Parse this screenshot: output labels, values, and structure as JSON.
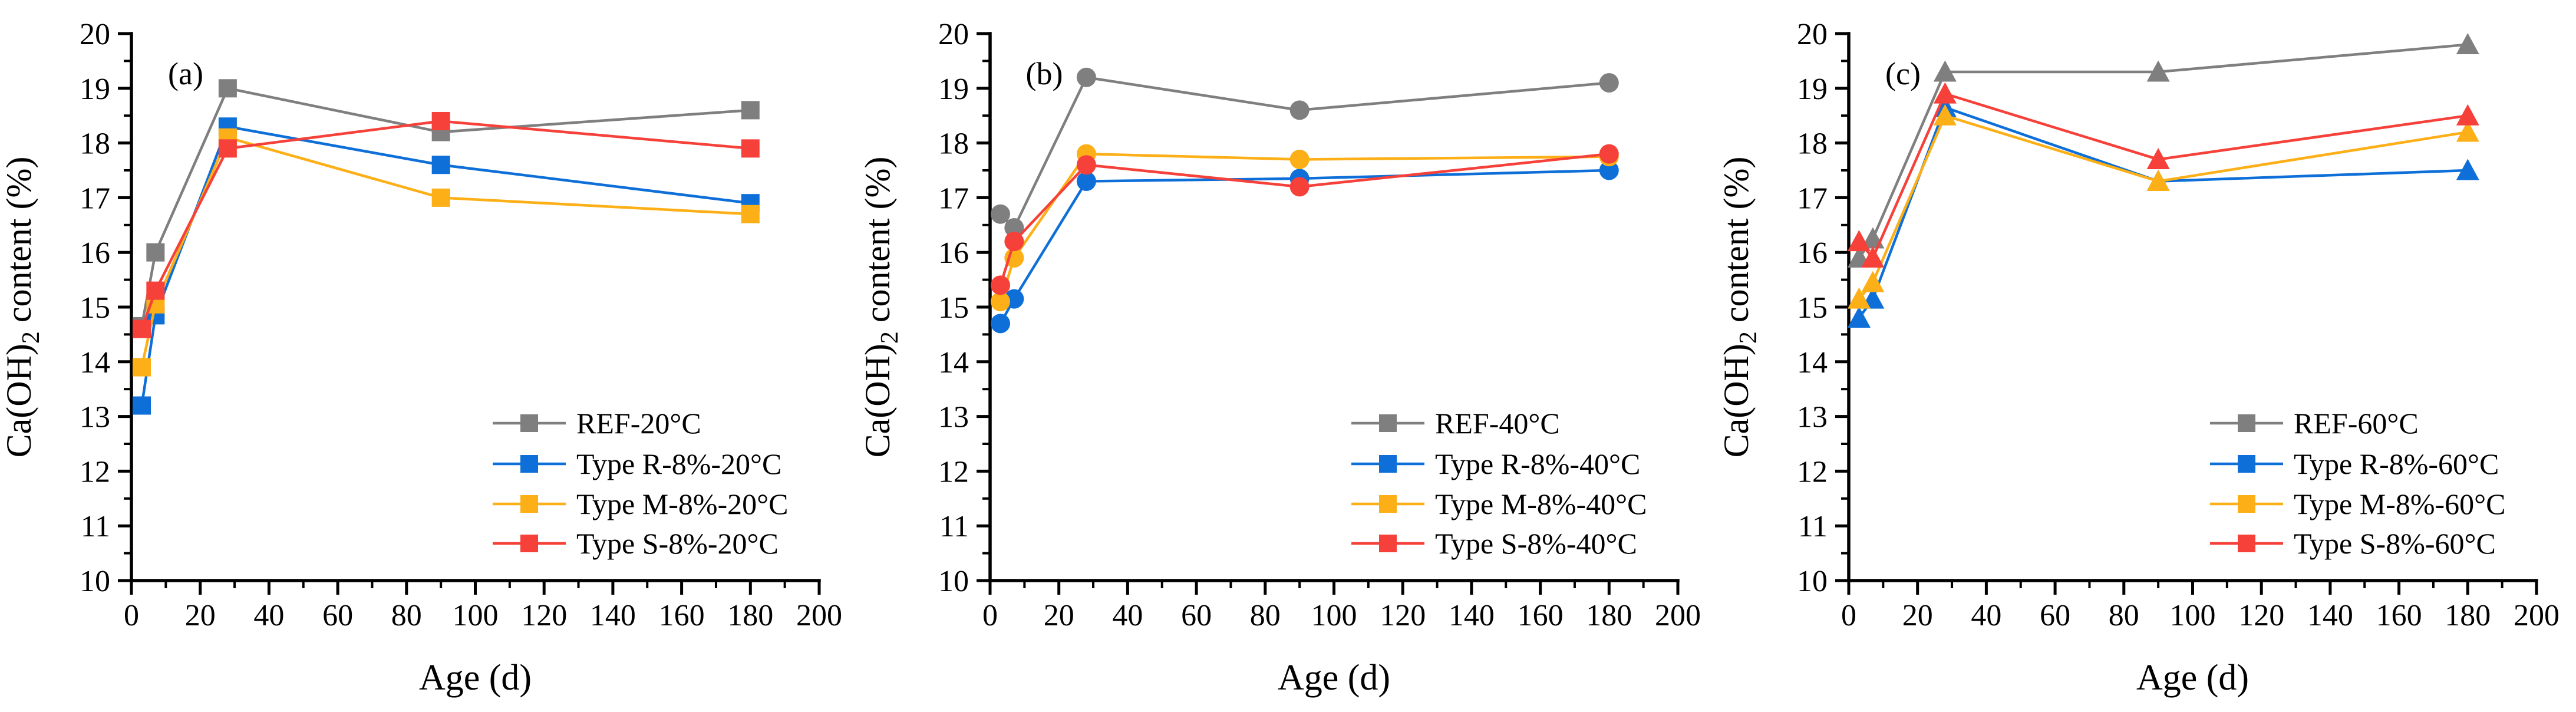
{
  "figure": {
    "background": "#ffffff",
    "x_axis_title": "Age (d)",
    "y_axis_title": "Ca(OH)2 content (%)",
    "y_axis_title_parts": {
      "prefix": "Ca(OH)",
      "subscript": "2",
      "suffix": " content (%)"
    },
    "axis_color": "#000000"
  },
  "chart_data": [
    {
      "type": "line",
      "panel_label": "(a)",
      "marker": "square",
      "x": [
        3,
        7,
        28,
        90,
        180
      ],
      "xlabel": "Age (d)",
      "ylabel": "Ca(OH)2 content (%)",
      "xlim": [
        0,
        200
      ],
      "ylim": [
        10,
        20
      ],
      "xticks": [
        0,
        20,
        40,
        60,
        80,
        100,
        120,
        140,
        160,
        180,
        200
      ],
      "yticks": [
        10,
        11,
        12,
        13,
        14,
        15,
        16,
        17,
        18,
        19,
        20
      ],
      "x_minor_step": 10,
      "y_minor_step": 0.5,
      "grid": false,
      "legend_position": "lower-right",
      "series": [
        {
          "name": "REF-20°C",
          "color": "#7f7f7f",
          "values": [
            14.65,
            16.0,
            19.0,
            18.2,
            18.6
          ]
        },
        {
          "name": "Type R-8%-20°C",
          "color": "#0e6fd8",
          "values": [
            13.2,
            14.85,
            18.3,
            17.6,
            16.9
          ]
        },
        {
          "name": "Type M-8%-20°C",
          "color": "#fcaf17",
          "values": [
            13.9,
            15.05,
            18.1,
            17.0,
            16.7
          ]
        },
        {
          "name": "Type S-8%-20°C",
          "color": "#f6413a",
          "values": [
            14.6,
            15.3,
            17.9,
            18.4,
            17.9
          ]
        }
      ]
    },
    {
      "type": "line",
      "panel_label": "(b)",
      "marker": "circle",
      "x": [
        3,
        7,
        28,
        90,
        180
      ],
      "xlabel": "Age (d)",
      "ylabel": "Ca(OH)2 content (%)",
      "xlim": [
        0,
        200
      ],
      "ylim": [
        10,
        20
      ],
      "xticks": [
        0,
        20,
        40,
        60,
        80,
        100,
        120,
        140,
        160,
        180,
        200
      ],
      "yticks": [
        10,
        11,
        12,
        13,
        14,
        15,
        16,
        17,
        18,
        19,
        20
      ],
      "x_minor_step": 10,
      "y_minor_step": 0.5,
      "grid": false,
      "legend_position": "lower-right",
      "series": [
        {
          "name": "REF-40°C",
          "color": "#7f7f7f",
          "values": [
            16.7,
            16.45,
            19.2,
            18.6,
            19.1
          ]
        },
        {
          "name": "Type R-8%-40°C",
          "color": "#0e6fd8",
          "values": [
            14.7,
            15.15,
            17.3,
            17.35,
            17.5
          ]
        },
        {
          "name": "Type M-8%-40°C",
          "color": "#fcaf17",
          "values": [
            15.1,
            15.9,
            17.8,
            17.7,
            17.75
          ]
        },
        {
          "name": "Type S-8%-40°C",
          "color": "#f6413a",
          "values": [
            15.4,
            16.2,
            17.6,
            17.2,
            17.8
          ]
        }
      ]
    },
    {
      "type": "line",
      "panel_label": "(c)",
      "marker": "triangle",
      "x": [
        3,
        7,
        28,
        90,
        180
      ],
      "xlabel": "Age (d)",
      "ylabel": "Ca(OH)2 content (%)",
      "xlim": [
        0,
        200
      ],
      "ylim": [
        10,
        20
      ],
      "xticks": [
        0,
        20,
        40,
        60,
        80,
        100,
        120,
        140,
        160,
        180,
        200
      ],
      "yticks": [
        10,
        11,
        12,
        13,
        14,
        15,
        16,
        17,
        18,
        19,
        20
      ],
      "x_minor_step": 10,
      "y_minor_step": 0.5,
      "grid": false,
      "legend_position": "lower-right",
      "series": [
        {
          "name": "REF-60°C",
          "color": "#7f7f7f",
          "values": [
            15.9,
            16.25,
            19.3,
            19.3,
            19.8
          ]
        },
        {
          "name": "Type R-8%-60°C",
          "color": "#0e6fd8",
          "values": [
            14.8,
            15.15,
            18.65,
            17.3,
            17.5
          ]
        },
        {
          "name": "Type M-8%-60°C",
          "color": "#fcaf17",
          "values": [
            15.15,
            15.45,
            18.5,
            17.3,
            18.2
          ]
        },
        {
          "name": "Type S-8%-60°C",
          "color": "#f6413a",
          "values": [
            16.2,
            15.9,
            18.9,
            17.7,
            18.5
          ]
        }
      ]
    }
  ]
}
